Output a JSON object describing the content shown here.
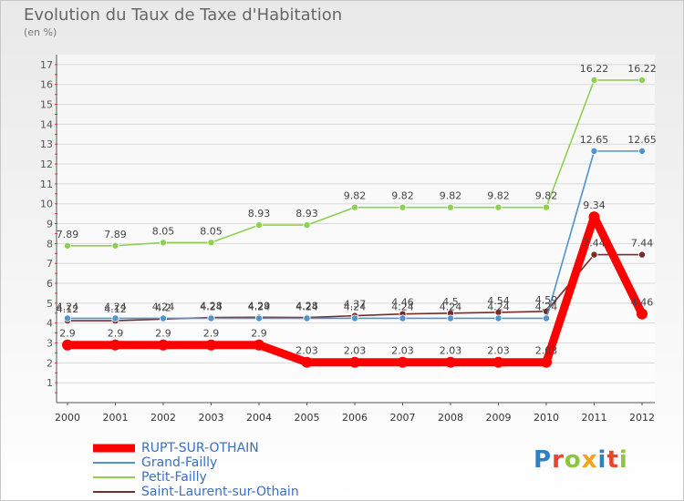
{
  "title": "Evolution du Taux de Taxe d'Habitation",
  "subtitle": "(en %)",
  "chart_data": {
    "type": "line",
    "x": [
      "2000",
      "2001",
      "2002",
      "2003",
      "2004",
      "2005",
      "2006",
      "2007",
      "2008",
      "2009",
      "2010",
      "2011",
      "2012"
    ],
    "ylim": [
      1,
      17
    ],
    "yticks": [
      1,
      2,
      3,
      4,
      5,
      6,
      7,
      8,
      9,
      10,
      11,
      12,
      13,
      14,
      15,
      16,
      17
    ],
    "grid": "horizontal",
    "legend_position": "bottom-left",
    "series": [
      {
        "name": "RUPT-SUR-OTHAIN",
        "color": "#ff0000",
        "values": [
          2.9,
          2.9,
          2.9,
          2.9,
          2.9,
          2.03,
          2.03,
          2.03,
          2.03,
          2.03,
          2.03,
          9.34,
          4.46
        ],
        "labels": [
          "2.9",
          "2.9",
          "2.9",
          "2.9",
          "2.9",
          "2.03",
          "2.03",
          "2.03",
          "2.03",
          "2.03",
          "2.03",
          "9.34",
          "4.46"
        ]
      },
      {
        "name": "Grand-Failly",
        "color": "#4f93cf",
        "values": [
          4.24,
          4.24,
          4.24,
          4.24,
          4.24,
          4.24,
          4.24,
          4.24,
          4.24,
          4.24,
          4.24,
          12.65,
          12.65
        ],
        "labels": [
          "4.24",
          "4.24",
          "4.24",
          "4.24",
          "4.24",
          "4.24",
          "4.24",
          "4.24",
          "4.24",
          "4.24",
          "4.24",
          "12.65",
          "12.65"
        ]
      },
      {
        "name": "Petit-Failly",
        "color": "#8ed050",
        "values": [
          7.89,
          7.89,
          8.05,
          8.05,
          8.93,
          8.93,
          9.82,
          9.82,
          9.82,
          9.82,
          9.82,
          16.22,
          16.22
        ],
        "labels": [
          "7.89",
          "7.89",
          "8.05",
          "8.05",
          "8.93",
          "8.93",
          "9.82",
          "9.82",
          "9.82",
          "9.82",
          "9.82",
          "16.22",
          "16.22"
        ]
      },
      {
        "name": "Saint-Laurent-sur-Othain",
        "color": "#7a2a2a",
        "values": [
          4.12,
          4.12,
          4.2,
          4.28,
          4.29,
          4.28,
          4.37,
          4.46,
          4.5,
          4.54,
          4.59,
          7.44,
          7.44
        ],
        "labels": [
          "4.12",
          "4.12",
          "4.2",
          "4.28",
          "4.29",
          "4.28",
          "4.37",
          "4.46",
          "4.5",
          "4.54",
          "4.59",
          "7.44",
          "7.44"
        ]
      }
    ]
  }
}
